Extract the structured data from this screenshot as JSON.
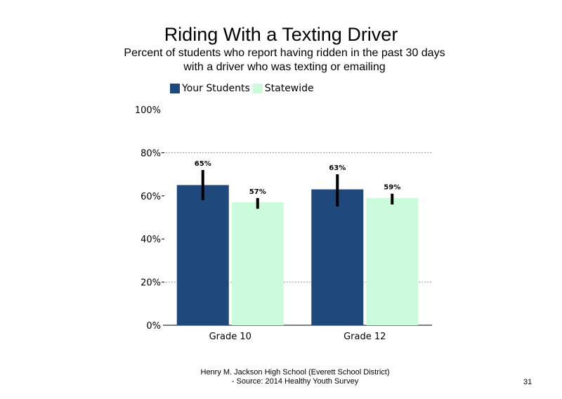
{
  "slide": {
    "title": "Riding With a Texting Driver",
    "subtitle_line1": "Percent of students who report having ridden in the past 30 days",
    "subtitle_line2": "with a driver who was texting or emailing",
    "footer_line1": "Henry M. Jackson High School (Everett School District)",
    "footer_line2": "- Source: 2014 Healthy Youth Survey",
    "page_number": "31"
  },
  "chart_data": {
    "type": "bar",
    "title": "Riding With a Texting Driver",
    "subtitle": "Percent of students who report having ridden in the past 30 days with a driver who was texting or emailing",
    "categories": [
      "Grade 10",
      "Grade 12"
    ],
    "series": [
      {
        "name": "Your Students",
        "color": "#1f497d",
        "values": [
          65,
          63
        ],
        "labels": [
          "65%",
          "63%"
        ],
        "error_low": [
          58,
          55
        ],
        "error_high": [
          72,
          70
        ]
      },
      {
        "name": "Statewide",
        "color": "#ccfadc",
        "values": [
          57,
          59
        ],
        "labels": [
          "57%",
          "59%"
        ],
        "error_low": [
          54,
          56
        ],
        "error_high": [
          59,
          61
        ]
      }
    ],
    "ylim": [
      0,
      100
    ],
    "yticks": [
      0,
      20,
      40,
      60,
      80,
      100
    ],
    "ytick_labels": [
      "0%",
      "20%",
      "40%",
      "60%",
      "80%",
      "100%"
    ],
    "grid": "dotted horizontal at 20%, 80%",
    "legend": "top-left"
  }
}
